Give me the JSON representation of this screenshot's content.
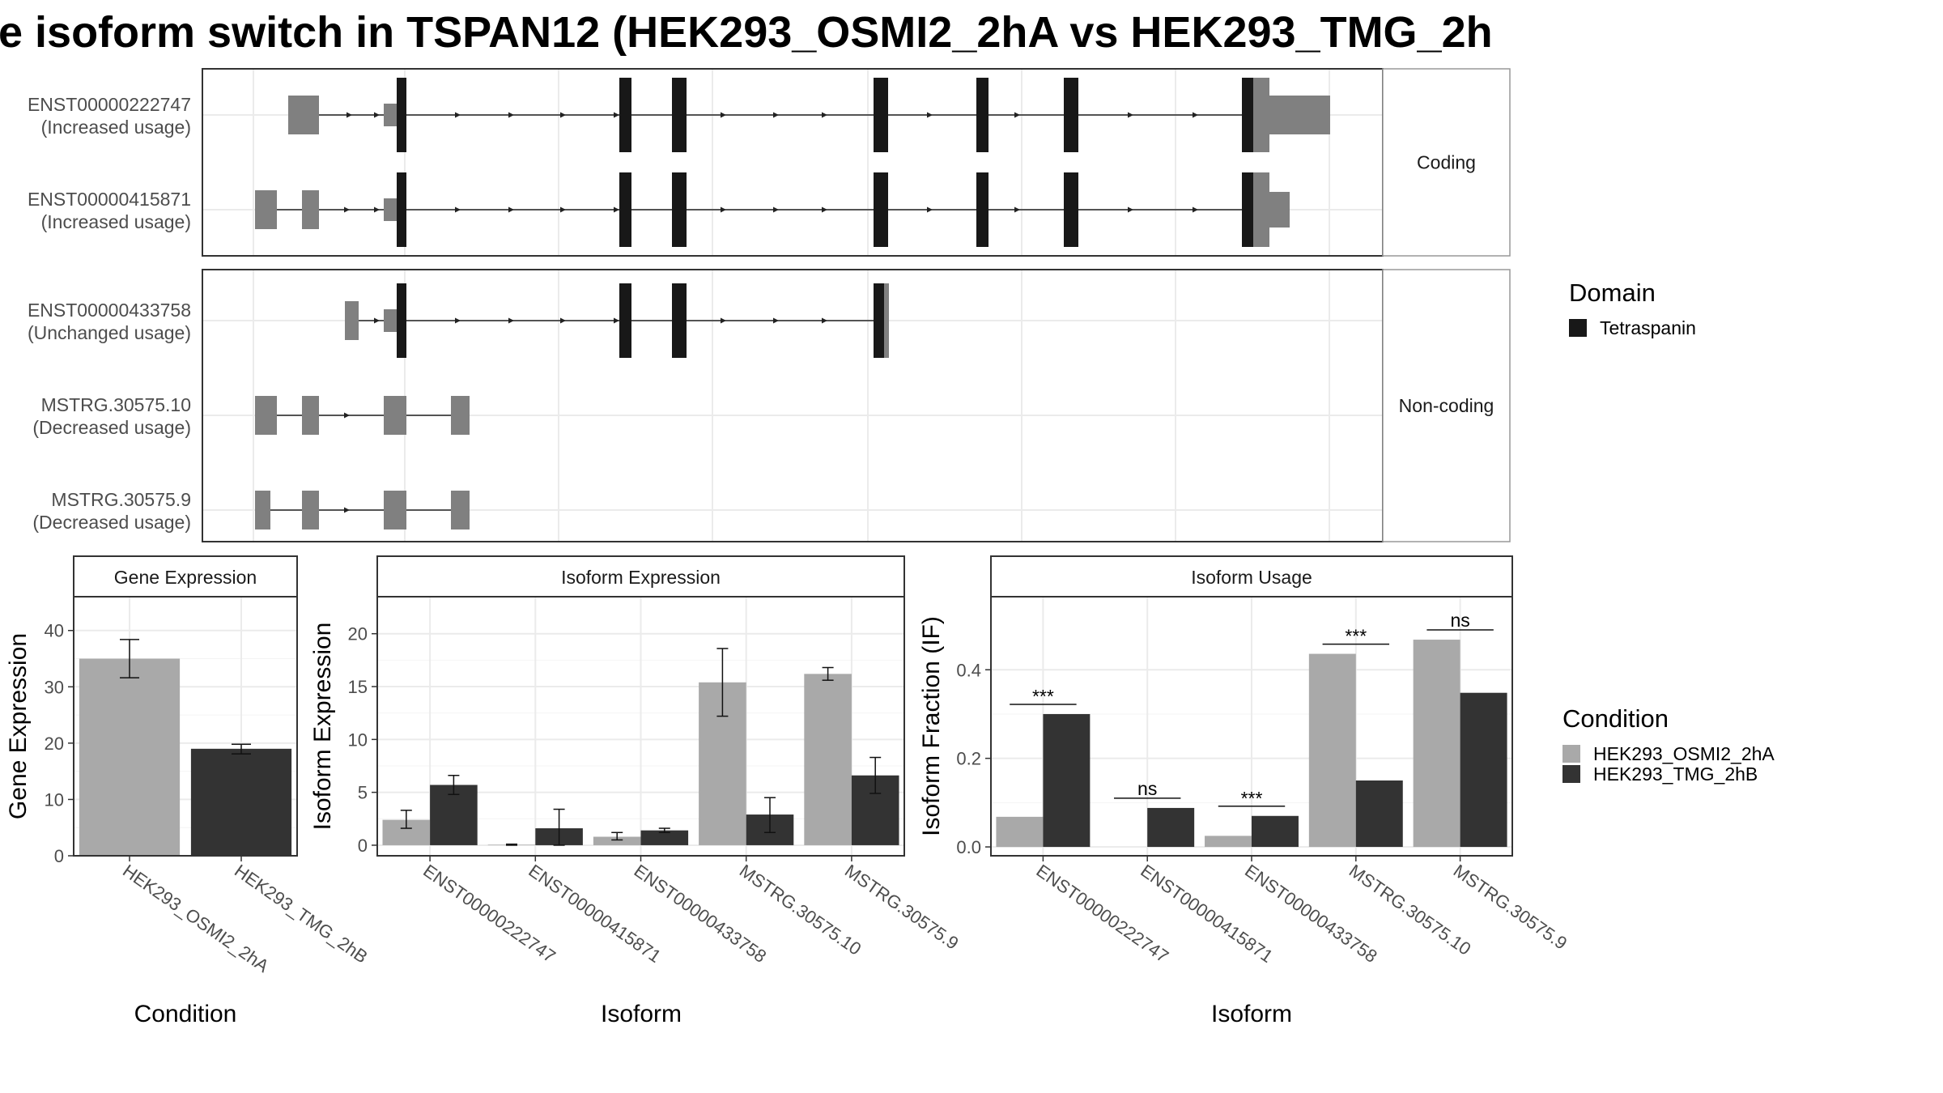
{
  "title": "e isoform switch in TSPAN12 (HEK293_OSMI2_2hA vs HEK293_TMG_2h",
  "colors": {
    "condition_1": "#a9a9a9",
    "condition_2": "#333333",
    "utr": "#808080",
    "domain": "#181818",
    "panel_border": "#333333",
    "strip_fill": "#ffffff",
    "grid": "#ebebeb"
  },
  "structure": {
    "groups": [
      {
        "label": "Coding",
        "transcripts": [
          {
            "id": "ENST00000222747",
            "usage": "(Increased usage)"
          },
          {
            "id": "ENST00000415871",
            "usage": "(Increased usage)"
          }
        ]
      },
      {
        "label": "Non-coding",
        "transcripts": [
          {
            "id": "ENST00000433758",
            "usage": "(Unchanged usage)"
          },
          {
            "id": "MSTRG.30575.10",
            "usage": "(Decreased usage)"
          },
          {
            "id": "MSTRG.30575.9",
            "usage": "(Decreased usage)"
          }
        ]
      }
    ]
  },
  "legend_domain": {
    "title": "Domain",
    "items": [
      {
        "label": "Tetraspanin",
        "color": "#181818"
      }
    ]
  },
  "legend_condition": {
    "title": "Condition",
    "items": [
      {
        "label": "HEK293_OSMI2_2hA",
        "color": "#a9a9a9"
      },
      {
        "label": "HEK293_TMG_2hB",
        "color": "#333333"
      }
    ]
  },
  "chart_data": [
    {
      "type": "bar",
      "title": "Gene Expression",
      "xlabel": "Condition",
      "ylabel": "Gene Expression",
      "categories": [
        "HEK293_OSMI2_2hA",
        "HEK293_TMG_2hB"
      ],
      "values": [
        35.0,
        19.0
      ],
      "errors": [
        [
          31.6,
          38.4
        ],
        [
          18.1,
          19.8
        ]
      ],
      "ylim": [
        0,
        46
      ],
      "yticks": [
        0,
        10,
        20,
        30,
        40
      ]
    },
    {
      "type": "bar",
      "title": "Isoform Expression",
      "xlabel": "Isoform",
      "ylabel": "Isoform Expression",
      "categories": [
        "ENST00000222747",
        "ENST00000415871",
        "ENST00000433758",
        "MSTRG.30575.10",
        "MSTRG.30575.9"
      ],
      "series": [
        {
          "name": "HEK293_OSMI2_2hA",
          "values": [
            2.4,
            0.05,
            0.8,
            15.4,
            16.2
          ],
          "errors": [
            [
              1.6,
              3.3
            ],
            [
              0.0,
              0.1
            ],
            [
              0.5,
              1.2
            ],
            [
              12.2,
              18.6
            ],
            [
              15.6,
              16.8
            ]
          ]
        },
        {
          "name": "HEK293_TMG_2hB",
          "values": [
            5.7,
            1.6,
            1.4,
            2.9,
            6.6
          ],
          "errors": [
            [
              4.8,
              6.6
            ],
            [
              0.0,
              3.4
            ],
            [
              1.2,
              1.6
            ],
            [
              1.2,
              4.5
            ],
            [
              4.9,
              8.3
            ]
          ]
        }
      ],
      "ylim": [
        -1,
        23.5
      ],
      "yticks": [
        0,
        5,
        10,
        15,
        20
      ]
    },
    {
      "type": "bar",
      "title": "Isoform Usage",
      "xlabel": "Isoform",
      "ylabel": "Isoform Fraction (IF)",
      "categories": [
        "ENST00000222747",
        "ENST00000415871",
        "ENST00000433758",
        "MSTRG.30575.10",
        "MSTRG.30575.9"
      ],
      "series": [
        {
          "name": "HEK293_OSMI2_2hA",
          "values": [
            0.068,
            0.0,
            0.025,
            0.436,
            0.468
          ]
        },
        {
          "name": "HEK293_TMG_2hB",
          "values": [
            0.3,
            0.088,
            0.07,
            0.15,
            0.348
          ]
        }
      ],
      "significance": [
        "***",
        "ns",
        "***",
        "***",
        "ns"
      ],
      "ylim": [
        -0.02,
        0.565
      ],
      "yticks": [
        0.0,
        0.2,
        0.4
      ],
      "ytick_labels": [
        "0.0",
        "0.2",
        "0.4"
      ]
    }
  ]
}
